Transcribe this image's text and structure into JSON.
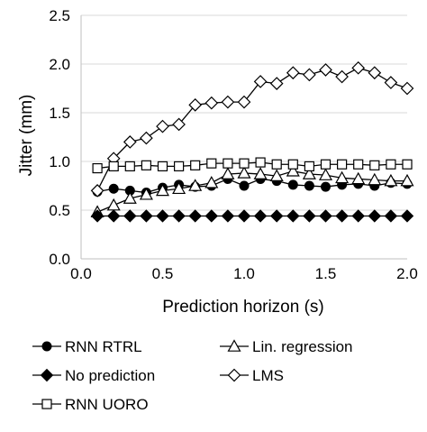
{
  "chart_data": {
    "type": "line",
    "title": "",
    "xlabel": "Prediction horizon (s)",
    "ylabel": "Jitter (mm)",
    "xlim": [
      0.0,
      2.0
    ],
    "ylim": [
      0.0,
      2.5
    ],
    "x_ticks": [
      "0.0",
      "0.5",
      "1.0",
      "1.5",
      "2.0"
    ],
    "y_ticks": [
      "0.0",
      "0.5",
      "1.0",
      "1.5",
      "2.0",
      "2.5"
    ],
    "grid": "horizontal",
    "legend_position": "bottom",
    "x": [
      0.1,
      0.2,
      0.3,
      0.4,
      0.5,
      0.6,
      0.7,
      0.8,
      0.9,
      1.0,
      1.1,
      1.2,
      1.3,
      1.4,
      1.5,
      1.6,
      1.7,
      1.8,
      1.9,
      2.0
    ],
    "series": [
      {
        "name": "RNN RTRL",
        "marker": "circle-filled",
        "values": [
          0.69,
          0.72,
          0.7,
          0.68,
          0.73,
          0.76,
          0.74,
          0.75,
          0.82,
          0.75,
          0.82,
          0.8,
          0.76,
          0.75,
          0.74,
          0.76,
          0.77,
          0.75,
          0.78,
          0.77
        ]
      },
      {
        "name": "Lin. regression",
        "marker": "triangle-open",
        "values": [
          0.48,
          0.55,
          0.62,
          0.66,
          0.7,
          0.72,
          0.75,
          0.78,
          0.87,
          0.88,
          0.87,
          0.85,
          0.9,
          0.87,
          0.86,
          0.83,
          0.82,
          0.81,
          0.8,
          0.8
        ]
      },
      {
        "name": "No prediction",
        "marker": "diamond-filled",
        "values": [
          0.44,
          0.44,
          0.44,
          0.44,
          0.44,
          0.44,
          0.44,
          0.44,
          0.44,
          0.44,
          0.44,
          0.44,
          0.44,
          0.44,
          0.44,
          0.44,
          0.44,
          0.44,
          0.44,
          0.44
        ]
      },
      {
        "name": "LMS",
        "marker": "diamond-open",
        "values": [
          0.7,
          1.03,
          1.2,
          1.24,
          1.36,
          1.38,
          1.58,
          1.6,
          1.61,
          1.61,
          1.82,
          1.8,
          1.91,
          1.89,
          1.94,
          1.87,
          1.96,
          1.91,
          1.81,
          1.75
        ]
      },
      {
        "name": "RNN UORO",
        "marker": "square-open",
        "values": [
          0.93,
          0.95,
          0.95,
          0.96,
          0.95,
          0.95,
          0.96,
          0.98,
          0.98,
          0.98,
          0.99,
          0.97,
          0.97,
          0.95,
          0.97,
          0.97,
          0.97,
          0.96,
          0.97,
          0.97
        ]
      }
    ]
  }
}
